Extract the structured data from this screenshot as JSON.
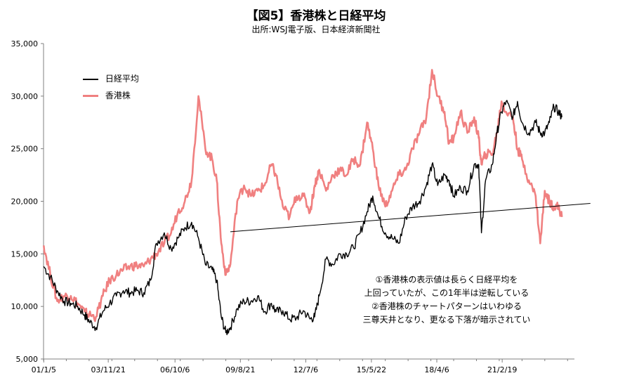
{
  "chart_data": {
    "type": "line",
    "title": "【図5】香港株と日経平均",
    "subtitle": "出所:WSJ電子版、日本経済新聞社",
    "ylim": [
      5000,
      35000
    ],
    "yticks": [
      5000,
      10000,
      15000,
      20000,
      25000,
      30000,
      35000
    ],
    "ytick_labels": [
      "5,000",
      "10,000",
      "15,000",
      "20,000",
      "25,000",
      "30,000",
      "35,000"
    ],
    "x_range": [
      2001.0,
      2024.3
    ],
    "xticks": [
      2001.01,
      2003.84,
      2006.77,
      2009.64,
      2012.51,
      2015.39,
      2018.26,
      2021.13
    ],
    "xtick_labels": [
      "01/1/5",
      "03/11/21",
      "06/10/6",
      "09/8/21",
      "12/7/6",
      "15/5/22",
      "18/4/6",
      "21/2/19"
    ],
    "legend_position": "top-left",
    "grid": false,
    "series": [
      {
        "name": "日経平均",
        "color": "#000000",
        "x": [
          2001.01,
          2001.3,
          2001.6,
          2001.9,
          2002.2,
          2002.5,
          2002.8,
          2003.0,
          2003.3,
          2003.6,
          2003.9,
          2004.2,
          2004.5,
          2004.8,
          2005.1,
          2005.4,
          2005.7,
          2005.95,
          2006.3,
          2006.6,
          2006.9,
          2007.2,
          2007.5,
          2007.8,
          2008.1,
          2008.4,
          2008.6,
          2008.8,
          2009.0,
          2009.2,
          2009.5,
          2009.8,
          2010.1,
          2010.4,
          2010.7,
          2011.0,
          2011.2,
          2011.5,
          2011.8,
          2012.1,
          2012.4,
          2012.7,
          2012.9,
          2013.1,
          2013.4,
          2013.7,
          2014.0,
          2014.3,
          2014.6,
          2014.9,
          2015.2,
          2015.45,
          2015.7,
          2016.0,
          2016.3,
          2016.6,
          2016.9,
          2017.2,
          2017.5,
          2017.8,
          2018.05,
          2018.3,
          2018.6,
          2018.8,
          2019.0,
          2019.3,
          2019.6,
          2019.9,
          2020.1,
          2020.22,
          2020.4,
          2020.7,
          2020.9,
          2021.1,
          2021.3,
          2021.6,
          2021.8,
          2022.0,
          2022.3,
          2022.6,
          2022.8,
          2023.0,
          2023.2,
          2023.4,
          2023.6,
          2023.75
        ],
        "values": [
          13800,
          12800,
          11500,
          10500,
          10300,
          10000,
          9200,
          8600,
          8000,
          9500,
          10300,
          11000,
          11500,
          11300,
          11500,
          11300,
          12500,
          16000,
          17000,
          15500,
          16500,
          17500,
          18000,
          16500,
          14000,
          13500,
          12500,
          9000,
          7500,
          8000,
          9800,
          10500,
          10500,
          11000,
          9500,
          10300,
          9500,
          9600,
          8800,
          8900,
          9600,
          8800,
          9000,
          11000,
          14500,
          14000,
          15000,
          15000,
          15600,
          17000,
          19000,
          20500,
          18500,
          17000,
          16500,
          16000,
          18500,
          19500,
          20000,
          21500,
          23500,
          21500,
          22500,
          22000,
          20500,
          21300,
          21000,
          23500,
          23500,
          17000,
          22000,
          23500,
          26500,
          28500,
          29500,
          28000,
          29500,
          27500,
          26500,
          27500,
          26500,
          26500,
          27500,
          29000,
          28500,
          28000
        ]
      },
      {
        "name": "香港株",
        "color": "#f08080",
        "x": [
          2001.01,
          2001.3,
          2001.6,
          2001.9,
          2002.2,
          2002.5,
          2002.8,
          2003.0,
          2003.3,
          2003.6,
          2003.9,
          2004.2,
          2004.5,
          2004.8,
          2005.1,
          2005.4,
          2005.7,
          2005.95,
          2006.3,
          2006.6,
          2006.9,
          2007.2,
          2007.5,
          2007.8,
          2008.1,
          2008.4,
          2008.6,
          2008.8,
          2009.0,
          2009.2,
          2009.5,
          2009.8,
          2010.1,
          2010.4,
          2010.7,
          2011.0,
          2011.2,
          2011.5,
          2011.8,
          2012.1,
          2012.4,
          2012.7,
          2012.9,
          2013.1,
          2013.4,
          2013.7,
          2014.0,
          2014.3,
          2014.6,
          2014.9,
          2015.2,
          2015.45,
          2015.7,
          2016.0,
          2016.3,
          2016.6,
          2016.9,
          2017.2,
          2017.5,
          2017.8,
          2018.05,
          2018.3,
          2018.6,
          2018.8,
          2019.0,
          2019.3,
          2019.6,
          2019.9,
          2020.1,
          2020.22,
          2020.4,
          2020.7,
          2020.9,
          2021.1,
          2021.3,
          2021.6,
          2021.8,
          2022.0,
          2022.3,
          2022.6,
          2022.8,
          2023.0,
          2023.2,
          2023.4,
          2023.6,
          2023.75
        ],
        "values": [
          15800,
          13000,
          10500,
          11000,
          11000,
          10300,
          9500,
          9200,
          9000,
          11000,
          12500,
          13000,
          13500,
          13800,
          13900,
          13800,
          14500,
          15000,
          16000,
          17000,
          19000,
          20000,
          22000,
          30000,
          25000,
          24000,
          22000,
          16000,
          13000,
          14000,
          20000,
          21500,
          20500,
          21000,
          21500,
          23500,
          22500,
          19500,
          18500,
          20500,
          20500,
          19000,
          21500,
          23000,
          21000,
          22500,
          23000,
          22500,
          24000,
          23500,
          27500,
          25000,
          21500,
          19500,
          21000,
          22500,
          23000,
          25000,
          26500,
          28000,
          32500,
          30000,
          28500,
          25500,
          26000,
          28500,
          26500,
          28000,
          26000,
          23500,
          24500,
          24500,
          26500,
          29500,
          28500,
          28000,
          25000,
          24000,
          22000,
          20500,
          16000,
          21000,
          20000,
          19500,
          19500,
          18500
        ]
      }
    ],
    "trendline": {
      "x": [
        2009.2,
        2025.0
      ],
      "values": [
        17100,
        19800
      ],
      "color": "#000000"
    },
    "annotation_lines": [
      "①香港株の表示値は長らく日経平均を",
      "上回っていたが、この1年半は逆転している",
      "②香港株のチャートパターンはいわゆる",
      "三尊天井となり、更なる下落が暗示されてい"
    ]
  }
}
